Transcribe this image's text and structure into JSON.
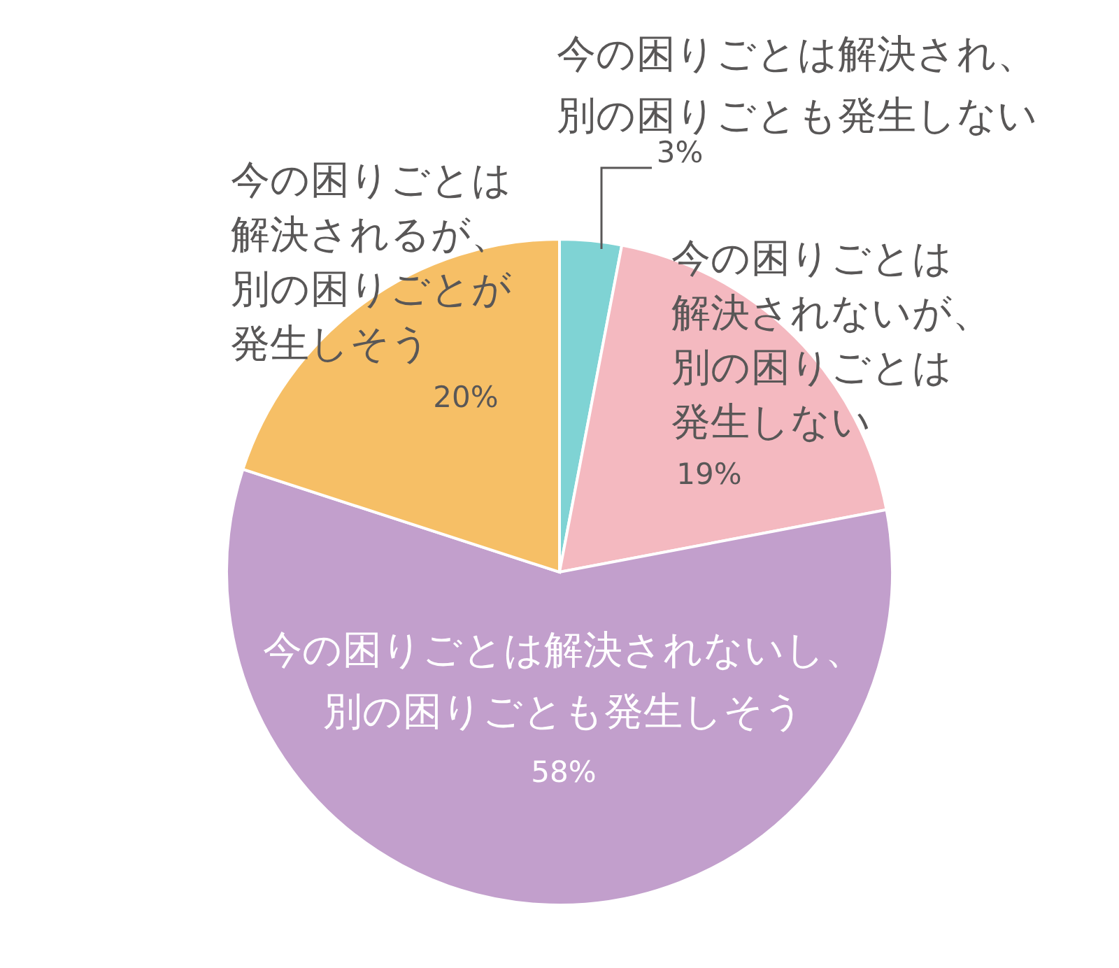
{
  "chart_data": {
    "type": "pie",
    "categories": [
      "今の困りごとは解決され、別の困りごとも発生しない",
      "今の困りごとは解決されないが、別の困りごとは発生しない",
      "今の困りごとは解決されないし、別の困りごとも発生しそう",
      "今の困りごとは解決されるが、別の困りごとが発生しそう"
    ],
    "values": [
      3,
      19,
      58,
      20
    ],
    "colors": [
      "#7fd3d4",
      "#f4b9c0",
      "#c29fcc",
      "#f6bf66"
    ],
    "value_labels": [
      "3%",
      "19%",
      "58%",
      "20%"
    ]
  }
}
